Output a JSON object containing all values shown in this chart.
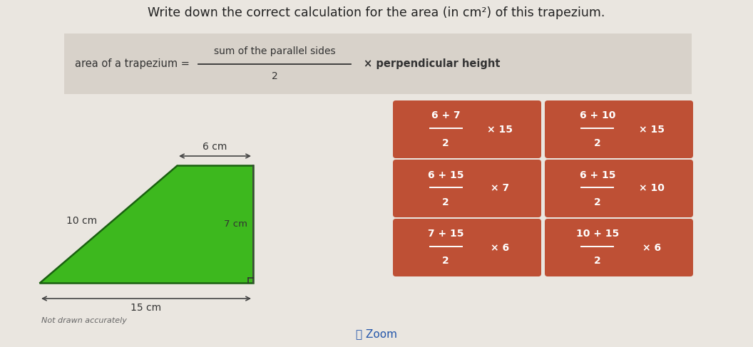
{
  "bg_color": "#eae6e0",
  "title": "Write down the correct calculation for the area (in cm²) of this trapezium.",
  "formula_left": "area of a trapezium =",
  "formula_num": "sum of the parallel sides",
  "formula_den": "2",
  "formula_right": "× perpendicular height",
  "trapezium_color": "#3db81e",
  "trapezium_outline": "#2a7a12",
  "dims": {
    "top": "6 cm",
    "left": "10 cm",
    "height": "7 cm",
    "bottom": "15 cm"
  },
  "button_color": "#be5035",
  "button_text_color": "#ffffff",
  "buttons_fraction": [
    [
      {
        "num": "6 + 7",
        "den": "2",
        "mult": "× 15"
      },
      {
        "num": "6 + 10",
        "den": "2",
        "mult": "× 15"
      }
    ],
    [
      {
        "num": "6 + 15",
        "den": "2",
        "mult": "× 7"
      },
      {
        "num": "6 + 15",
        "den": "2",
        "mult": "× 10"
      }
    ],
    [
      {
        "num": "7 + 15",
        "den": "2",
        "mult": "× 6"
      },
      {
        "num": "10 + 15",
        "den": "2",
        "mult": "× 6"
      }
    ]
  ],
  "not_drawn": "Not drawn accurately",
  "zoom_text": "Zoom"
}
